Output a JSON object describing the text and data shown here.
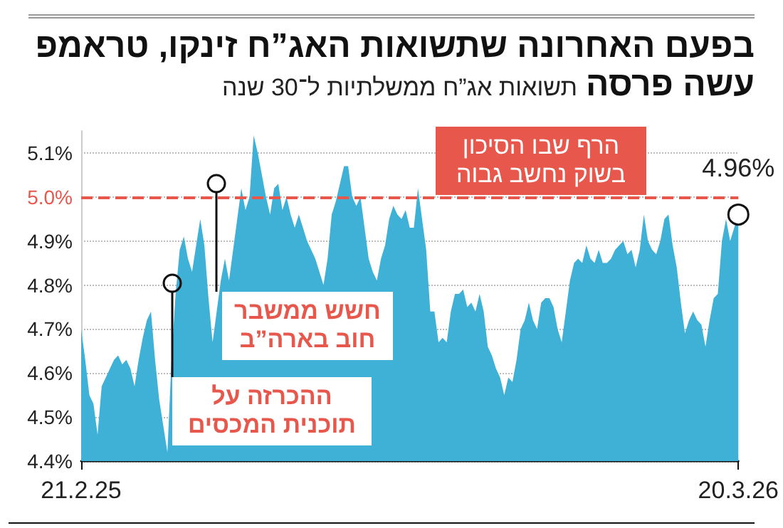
{
  "chart_data": {
    "type": "area",
    "title": "בפעם האחרונה שתשואות האג”ח זינקו, טראמפ עשה פרסה",
    "subtitle": "תשואות אג”ח ממשלתיות ל־30 שנה",
    "categories": [
      "21.2.25",
      null,
      null,
      null,
      null,
      null,
      null,
      null,
      null,
      null,
      null,
      null,
      null,
      null,
      null,
      null,
      null,
      null,
      null,
      null,
      null,
      null,
      null,
      null,
      null,
      null,
      null,
      null,
      null,
      null,
      null,
      null,
      null,
      null,
      null,
      null,
      null,
      null,
      null,
      null,
      null,
      null,
      null,
      null,
      null,
      null,
      null,
      null,
      null,
      null,
      null,
      null,
      null,
      null,
      null,
      null,
      null,
      null,
      null,
      null,
      null,
      null,
      null,
      null,
      null,
      null,
      null,
      null,
      null,
      null,
      null,
      null,
      null,
      null,
      null,
      null,
      null,
      null,
      null,
      null,
      null,
      null,
      null,
      null,
      null,
      null,
      null,
      null,
      null,
      null,
      null,
      null,
      null,
      null,
      null,
      null,
      null,
      null,
      null,
      null,
      null,
      null,
      null,
      null,
      null,
      null,
      null,
      null,
      null,
      null,
      null,
      null,
      null,
      null,
      null,
      null,
      null,
      null,
      null,
      null,
      null,
      null,
      null,
      null,
      null,
      null,
      null,
      null,
      null,
      null,
      null,
      null,
      null,
      null,
      null,
      null,
      null,
      null,
      null,
      null,
      null,
      null,
      null,
      null,
      null,
      null,
      null,
      null,
      null,
      null,
      null,
      null,
      null,
      null,
      null,
      null,
      null,
      null,
      null,
      null,
      "20.3.26"
    ],
    "values": [
      4.7,
      4.63,
      4.55,
      4.53,
      4.46,
      4.57,
      4.59,
      4.61,
      4.63,
      4.64,
      4.62,
      4.63,
      4.61,
      4.57,
      4.63,
      4.68,
      4.72,
      4.74,
      4.63,
      4.54,
      4.48,
      4.42,
      4.63,
      4.78,
      4.88,
      4.91,
      4.86,
      4.83,
      4.89,
      4.95,
      4.89,
      4.77,
      4.67,
      4.74,
      4.81,
      4.86,
      4.81,
      4.88,
      4.95,
      5.02,
      4.97,
      5.0,
      5.14,
      5.1,
      5.05,
      5.0,
      4.96,
      5.02,
      5.03,
      4.97,
      5.0,
      4.96,
      4.93,
      4.96,
      4.93,
      4.9,
      4.88,
      4.86,
      4.83,
      4.8,
      4.86,
      4.96,
      4.99,
      5.03,
      5.07,
      5.07,
      5.0,
      4.98,
      5.0,
      4.93,
      4.86,
      4.83,
      4.81,
      4.86,
      4.89,
      4.95,
      4.98,
      4.96,
      4.95,
      4.97,
      4.93,
      4.93,
      5.02,
      4.95,
      4.88,
      4.74,
      4.74,
      4.67,
      4.68,
      4.67,
      4.74,
      4.78,
      4.78,
      4.79,
      4.75,
      4.76,
      4.74,
      4.78,
      4.74,
      4.66,
      4.64,
      4.61,
      4.59,
      4.55,
      4.59,
      4.58,
      4.63,
      4.7,
      4.72,
      4.76,
      4.72,
      4.7,
      4.76,
      4.77,
      4.77,
      4.75,
      4.7,
      4.67,
      4.74,
      4.81,
      4.85,
      4.86,
      4.85,
      4.89,
      4.86,
      4.85,
      4.88,
      4.85,
      4.85,
      4.86,
      4.88,
      4.89,
      4.9,
      4.87,
      4.88,
      4.84,
      4.88,
      4.96,
      4.9,
      4.88,
      4.87,
      4.9,
      4.95,
      4.96,
      4.89,
      4.84,
      4.76,
      4.69,
      4.72,
      4.74,
      4.72,
      4.71,
      4.66,
      4.72,
      4.77,
      4.78,
      4.9,
      4.95,
      4.9,
      4.93,
      4.96
    ],
    "value_labels": [
      null,
      null,
      null,
      null,
      null,
      null,
      null,
      null,
      null,
      null,
      null,
      null,
      null,
      null,
      null,
      null,
      null,
      null,
      null,
      null,
      null,
      null,
      null,
      null,
      null,
      null,
      null,
      null,
      null,
      null,
      null,
      null,
      null,
      null,
      null,
      null,
      null,
      null,
      null,
      null,
      null,
      null,
      null,
      null,
      null,
      null,
      null,
      null,
      null,
      null,
      null,
      null,
      null,
      null,
      null,
      null,
      null,
      null,
      null,
      null,
      null,
      null,
      null,
      null,
      null,
      null,
      null,
      null,
      null,
      null,
      null,
      null,
      null,
      null,
      null,
      null,
      null,
      null,
      null,
      null,
      null,
      null,
      null,
      null,
      null,
      null,
      null,
      null,
      null,
      null,
      null,
      null,
      null,
      null,
      null,
      null,
      null,
      null,
      null,
      null,
      null,
      null,
      null,
      null,
      null,
      null,
      null,
      null,
      null,
      null,
      null,
      null,
      null,
      null,
      null,
      null,
      null,
      null,
      null,
      null,
      null,
      null,
      null,
      null,
      null,
      null,
      null,
      null,
      null,
      null,
      null,
      null,
      null,
      null,
      null,
      null,
      null,
      null,
      null,
      null,
      null,
      null,
      null,
      null,
      null,
      null,
      null,
      null,
      null,
      null,
      null,
      null,
      null,
      null,
      null,
      null,
      null,
      null,
      null,
      null,
      "4.96%"
    ],
    "color": "#3fb1d7",
    "ylim": [
      4.4,
      5.15
    ],
    "yticks": [
      {
        "value": 4.4,
        "label": "4.4%"
      },
      {
        "value": 4.5,
        "label": "4.5%"
      },
      {
        "value": 4.6,
        "label": "4.6%"
      },
      {
        "value": 4.7,
        "label": "4.7%"
      },
      {
        "value": 4.8,
        "label": "4.8%"
      },
      {
        "value": 4.9,
        "label": "4.9%"
      },
      {
        "value": 5.0,
        "label": "5.0%"
      },
      {
        "value": 5.1,
        "label": "5.1%"
      }
    ],
    "grid": "y",
    "ref_lines": [
      {
        "axis": "y",
        "value": 5.0,
        "label": "הרף שבו הסיכון\nבשוק נחשב גבוה",
        "color": "#e8574b",
        "line_style": "dashed"
      }
    ],
    "annotations": [
      "חשש ממשבר\nחוב בארה”ב",
      "ההכרזה על\nתוכנית המכסים"
    ]
  }
}
